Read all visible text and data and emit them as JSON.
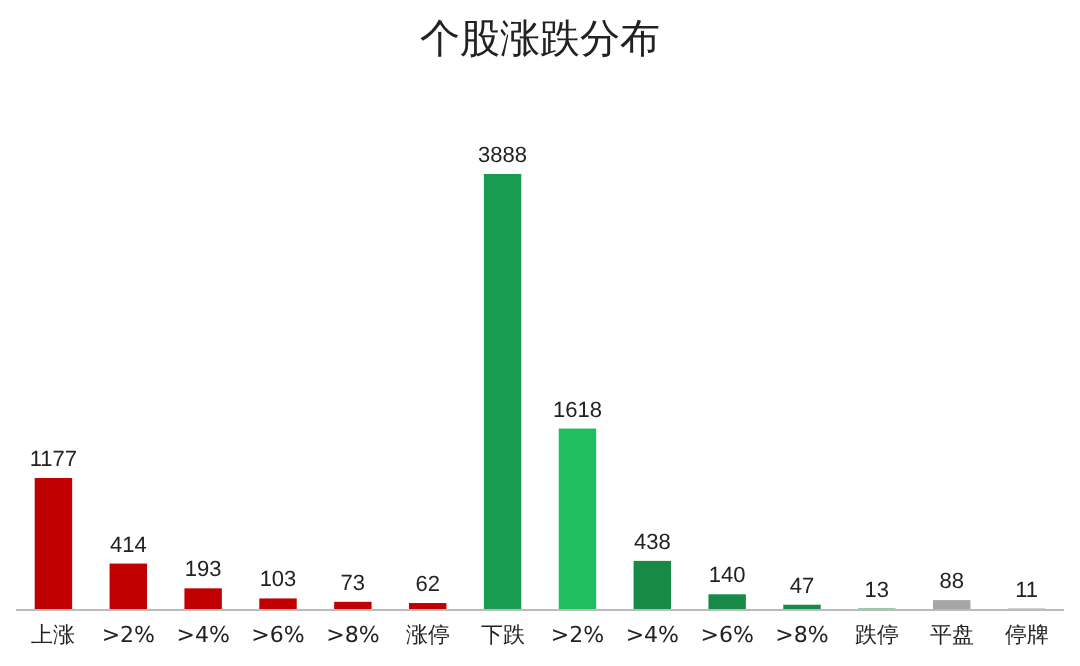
{
  "chart_data": {
    "type": "bar",
    "title": "个股涨跌分布",
    "categories": [
      "上涨",
      ">2%",
      ">4%",
      ">6%",
      ">8%",
      "涨停",
      "下跌",
      ">2%",
      ">4%",
      ">6%",
      ">8%",
      "跌停",
      "平盘",
      "停牌"
    ],
    "values": [
      1177,
      414,
      193,
      103,
      73,
      62,
      3888,
      1618,
      438,
      140,
      47,
      13,
      88,
      11
    ],
    "colors": [
      "#c00000",
      "#c00000",
      "#c00000",
      "#c00000",
      "#c00000",
      "#c00000",
      "#179c52",
      "#1fbf60",
      "#168a46",
      "#168a46",
      "#168a46",
      "#168a46",
      "#a6a6a6",
      "#404040"
    ],
    "data_labels": true
  }
}
